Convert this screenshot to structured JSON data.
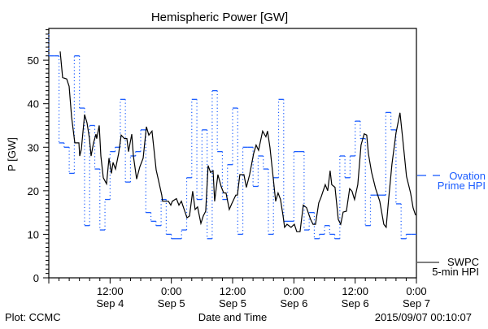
{
  "chart_data": {
    "type": "line",
    "title": "Hemispheric Power [GW]",
    "xlabel": "Date and Time",
    "ylabel": "P [GW]",
    "xunit": "hours since 0:00 Sep 4 2015",
    "xlim": [
      0,
      72
    ],
    "ylim": [
      0,
      57.3
    ],
    "yticks": [
      0,
      10,
      20,
      30,
      40,
      50
    ],
    "xticks": [
      {
        "hour": 12,
        "time": "12:00",
        "date": "Sep 4"
      },
      {
        "hour": 24,
        "time": "0:00",
        "date": "Sep 5"
      },
      {
        "hour": 36,
        "time": "12:00",
        "date": "Sep 5"
      },
      {
        "hour": 48,
        "time": "0:00",
        "date": "Sep 6"
      },
      {
        "hour": 60,
        "time": "12:00",
        "date": "Sep 6"
      },
      {
        "hour": 72,
        "time": "0:00",
        "date": "Sep 7"
      }
    ],
    "grid": false,
    "legend_placement": "right-outside",
    "series": [
      {
        "name": "Ovation Prime HPI",
        "legend": [
          "Ovation",
          "Prime HPI"
        ],
        "color": "#1a5cff",
        "style": "step-hourly",
        "initial_value": 56,
        "values": [
          51,
          51,
          31,
          30,
          24,
          51,
          39,
          12,
          35,
          25,
          11,
          18,
          29,
          30,
          41,
          22,
          28,
          29,
          34,
          15,
          13,
          12,
          18,
          10,
          9,
          9,
          11,
          23,
          41,
          18,
          34,
          9,
          43,
          29,
          18,
          26,
          39,
          10,
          30,
          30,
          21,
          28,
          25,
          10,
          23,
          41,
          13,
          13,
          29,
          29,
          11,
          15,
          9,
          10,
          12,
          10,
          9,
          28,
          23,
          28,
          36,
          32,
          12,
          19,
          19,
          19,
          38,
          34,
          17,
          9,
          10,
          10
        ]
      },
      {
        "name": "SWPC 5-min HPI",
        "legend": [
          "SWPC",
          "5-min HPI"
        ],
        "color": "#000000",
        "style": "line",
        "points": [
          [
            2.23,
            52
          ],
          [
            2.71,
            46
          ],
          [
            3.5,
            45.7
          ],
          [
            3.98,
            44
          ],
          [
            4.46,
            37
          ],
          [
            5.1,
            31
          ],
          [
            5.89,
            31
          ],
          [
            6.05,
            28
          ],
          [
            6.37,
            29.5
          ],
          [
            7.01,
            37.5
          ],
          [
            7.48,
            35.6
          ],
          [
            7.96,
            32
          ],
          [
            8.28,
            28
          ],
          [
            8.76,
            31
          ],
          [
            9.24,
            33
          ],
          [
            9.39,
            32
          ],
          [
            9.87,
            35
          ],
          [
            10.19,
            28
          ],
          [
            10.67,
            23
          ],
          [
            11.31,
            21.6
          ],
          [
            11.78,
            27.5
          ],
          [
            12.26,
            24
          ],
          [
            12.58,
            26.5
          ],
          [
            13.06,
            25
          ],
          [
            13.69,
            28.6
          ],
          [
            14.17,
            32.8
          ],
          [
            14.81,
            32
          ],
          [
            15.29,
            32
          ],
          [
            15.61,
            29
          ],
          [
            16.24,
            33
          ],
          [
            16.56,
            28
          ],
          [
            17.2,
            22.7
          ],
          [
            17.83,
            25.5
          ],
          [
            18.47,
            27.5
          ],
          [
            19.11,
            34.7
          ],
          [
            19.59,
            32.8
          ],
          [
            20.22,
            33.7
          ],
          [
            21.02,
            24.8
          ],
          [
            21.5,
            22.3
          ],
          [
            22.13,
            19
          ],
          [
            22.29,
            17.6
          ],
          [
            23.41,
            17.6
          ],
          [
            23.89,
            16.7
          ],
          [
            24.2,
            17.6
          ],
          [
            25.0,
            18.2
          ],
          [
            25.48,
            16.7
          ],
          [
            25.96,
            17.6
          ],
          [
            27.07,
            13.8
          ],
          [
            27.55,
            14.2
          ],
          [
            28.18,
            19.9
          ],
          [
            28.66,
            15.7
          ],
          [
            29.14,
            16.3
          ],
          [
            29.78,
            12.5
          ],
          [
            30.25,
            14.2
          ],
          [
            30.73,
            15.3
          ],
          [
            31.21,
            25.8
          ],
          [
            31.69,
            24.2
          ],
          [
            32.17,
            24.6
          ],
          [
            32.48,
            17.6
          ],
          [
            33.12,
            23.7
          ],
          [
            33.76,
            21
          ],
          [
            34.24,
            19.5
          ],
          [
            34.71,
            19.5
          ],
          [
            35.35,
            15.7
          ],
          [
            35.83,
            17
          ],
          [
            36.62,
            19
          ],
          [
            36.94,
            19
          ],
          [
            37.42,
            23.7
          ],
          [
            38.22,
            23.7
          ],
          [
            38.69,
            20.8
          ],
          [
            39.33,
            23.7
          ],
          [
            40.13,
            28.6
          ],
          [
            40.61,
            30.5
          ],
          [
            41.08,
            29.3
          ],
          [
            41.88,
            33.7
          ],
          [
            42.52,
            32.4
          ],
          [
            42.83,
            33.7
          ],
          [
            43.31,
            30
          ],
          [
            43.95,
            23
          ],
          [
            44.43,
            17.6
          ],
          [
            44.9,
            19.5
          ],
          [
            45.38,
            18
          ],
          [
            45.86,
            14.4
          ],
          [
            46.18,
            11.6
          ],
          [
            46.66,
            12.3
          ],
          [
            47.45,
            11.6
          ],
          [
            48.09,
            12.3
          ],
          [
            48.57,
            10.6
          ],
          [
            49.2,
            10.6
          ],
          [
            49.84,
            16.7
          ],
          [
            50.48,
            16.1
          ],
          [
            51.27,
            13.4
          ],
          [
            51.75,
            12.3
          ],
          [
            52.23,
            12.3
          ],
          [
            52.87,
            17.2
          ],
          [
            53.34,
            18.6
          ],
          [
            54.14,
            21.4
          ],
          [
            54.62,
            20
          ],
          [
            55.1,
            24.6
          ],
          [
            55.41,
            21.4
          ],
          [
            56.05,
            20.8
          ],
          [
            56.69,
            13.4
          ],
          [
            57.17,
            12.3
          ],
          [
            57.64,
            15.1
          ],
          [
            58.28,
            15.3
          ],
          [
            58.92,
            20.5
          ],
          [
            59.39,
            19.9
          ],
          [
            59.87,
            18
          ],
          [
            60.51,
            21.4
          ],
          [
            61.15,
            30.5
          ],
          [
            61.78,
            33.1
          ],
          [
            62.26,
            32.8
          ],
          [
            62.58,
            28.6
          ],
          [
            63.22,
            24.2
          ],
          [
            64.01,
            20.5
          ],
          [
            64.81,
            17.6
          ],
          [
            65.61,
            12.3
          ],
          [
            66.08,
            11.6
          ],
          [
            66.56,
            18
          ],
          [
            67.2,
            26.1
          ],
          [
            68.0,
            33.3
          ],
          [
            68.79,
            37.9
          ],
          [
            69.27,
            32.4
          ],
          [
            70.06,
            23.3
          ],
          [
            70.86,
            19.5
          ],
          [
            71.34,
            16.1
          ],
          [
            71.82,
            14.4
          ]
        ]
      }
    ]
  },
  "footer": {
    "plot_credit": "Plot: CCMC",
    "timestamp": "2015/09/07 00:10:07"
  }
}
